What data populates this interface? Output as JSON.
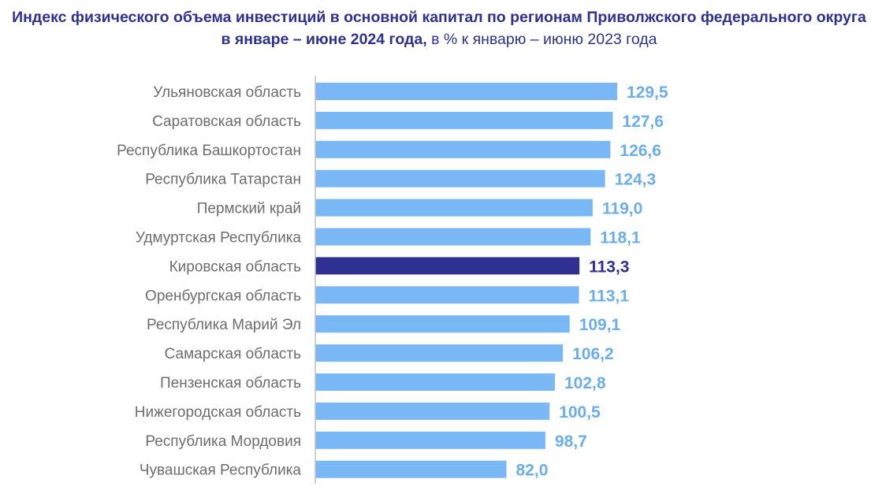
{
  "title": {
    "bold": "Индекс физического объема инвестиций в основной капитал по регионам Приволжского федерального округа в январе – июне 2024 года,",
    "rest": " в % к январю – июню 2023 года"
  },
  "colors": {
    "bar": "#7ab8f5",
    "highlight_bar": "#2e3192",
    "value_label": "#6aaef0",
    "highlight_value_label": "#2e3192",
    "axis": "#bfbfbf",
    "category_label": "#6d6d6d"
  },
  "chart_data": {
    "type": "bar",
    "orientation": "horizontal",
    "categories": [
      "Ульяновская область",
      "Саратовская область",
      "Республика Башкортостан",
      "Республика Татарстан",
      "Пермский край",
      "Удмуртская Республика",
      "Кировская область",
      "Оренбургская область",
      "Республика Марий Эл",
      "Самарская область",
      "Пензенская область",
      "Нижегородская область",
      "Республика Мордовия",
      "Чувашская Республика"
    ],
    "values": [
      129.5,
      127.6,
      126.6,
      124.3,
      119.0,
      118.1,
      113.3,
      113.1,
      109.1,
      106.2,
      102.8,
      100.5,
      98.7,
      82.0
    ],
    "value_labels": [
      "129,5",
      "127,6",
      "126,6",
      "124,3",
      "119,0",
      "118,1",
      "113,3",
      "113,1",
      "109,1",
      "106,2",
      "102,8",
      "100,5",
      "98,7",
      "82,0"
    ],
    "highlight_category": "Кировская область",
    "xlim": [
      0,
      140
    ],
    "grid": false,
    "legend": "none"
  }
}
